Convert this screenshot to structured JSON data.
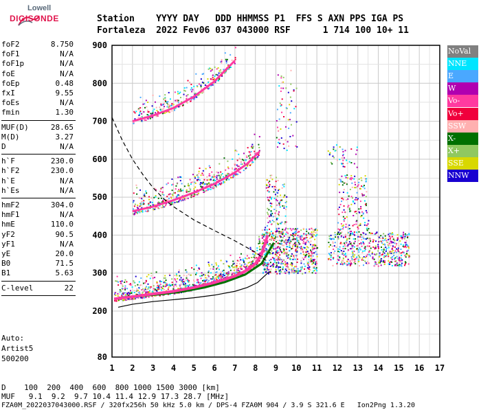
{
  "logo": {
    "top": "Lowell",
    "main": "DIGISONDE"
  },
  "header": {
    "line1": "Station    YYYY DAY   DDD HHMMSS P1  FFS S AXN PPS IGA PS",
    "line2": "Fortaleza  2022 Fev06 037 043000 RSF      1 714 100 10+ 11"
  },
  "params": [
    {
      "label": "foF2",
      "value": "8.750"
    },
    {
      "label": "foF1",
      "value": "N/A"
    },
    {
      "label": "foF1p",
      "value": "N/A"
    },
    {
      "label": "foE",
      "value": "N/A"
    },
    {
      "label": "foEp",
      "value": "0.48"
    },
    {
      "label": "fxI",
      "value": "9.55"
    },
    {
      "label": "foEs",
      "value": "N/A"
    },
    {
      "label": "fmin",
      "value": "1.30"
    },
    {
      "label": "MUF(D)",
      "value": "28.65"
    },
    {
      "label": "M(D)",
      "value": "3.27"
    },
    {
      "label": "D",
      "value": "N/A"
    },
    {
      "label": "h`F",
      "value": "230.0"
    },
    {
      "label": "h`F2",
      "value": "230.0"
    },
    {
      "label": "h`E",
      "value": "N/A"
    },
    {
      "label": "h`Es",
      "value": "N/A"
    },
    {
      "label": "hmF2",
      "value": "304.0"
    },
    {
      "label": "hmF1",
      "value": "N/A"
    },
    {
      "label": "hmE",
      "value": "110.0"
    },
    {
      "label": "yF2",
      "value": "90.5"
    },
    {
      "label": "yF1",
      "value": "N/A"
    },
    {
      "label": "yE",
      "value": "20.0"
    },
    {
      "label": "B0",
      "value": "71.5"
    },
    {
      "label": "B1",
      "value": "5.63"
    },
    {
      "label": "C-level",
      "value": "22"
    }
  ],
  "autoscaling": [
    "Auto:",
    "Artist5",
    "500200"
  ],
  "legend": [
    {
      "label": "NoVal",
      "color": "#808080"
    },
    {
      "label": "NNE",
      "color": "#00e5ff"
    },
    {
      "label": "E",
      "color": "#4aa8ff"
    },
    {
      "label": "W",
      "color": "#b000b0"
    },
    {
      "label": "Vo-",
      "color": "#ff3aa0"
    },
    {
      "label": "Vo+",
      "color": "#f0003c"
    },
    {
      "label": "SSW",
      "color": "#ffb0b0"
    },
    {
      "label": "X-",
      "color": "#007000"
    },
    {
      "label": "X+",
      "color": "#90c860"
    },
    {
      "label": "SSE",
      "color": "#d8d800"
    },
    {
      "label": "NNW",
      "color": "#1800d0"
    }
  ],
  "bottom": {
    "d_line": "D    100  200  400  600  800 1000 1500 3000 [km]",
    "muf_line": "MUF   9.1  9.2  9.7 10.4 11.4 12.9 17.3 28.7 [MHz]",
    "footer": "FZA0M_2022037043000.RSF / 320fx256h 50 kHz 5.0 km / DPS-4 FZA0M 904 / 3.9 S 321.6 E   Ion2Png 1.3.20"
  },
  "chart_data": {
    "type": "scatter",
    "x_ticks": [
      "1",
      "2",
      "3",
      "4",
      "5",
      "6",
      "7",
      "8",
      "9",
      "10",
      "11",
      "12",
      "13",
      "14",
      "15",
      "16",
      "17"
    ],
    "y_ticks": [
      "80",
      "200",
      "300",
      "400",
      "500",
      "600",
      "700",
      "800",
      "900"
    ],
    "xlim": [
      1,
      17
    ],
    "ylim": [
      80,
      900
    ],
    "grid": true,
    "legend_position": "right",
    "traces": [
      {
        "mode": "O-trace F2 virtual height",
        "color": "#ff3aa0",
        "x": [
          1.1,
          2.0,
          3.0,
          4.0,
          5.0,
          6.0,
          7.0,
          7.5,
          8.0,
          8.3,
          8.6
        ],
        "y": [
          232,
          238,
          245,
          252,
          262,
          275,
          292,
          305,
          325,
          350,
          400
        ]
      },
      {
        "mode": "X-trace F2 virtual height",
        "color": "#007000",
        "x": [
          1.5,
          2.5,
          3.5,
          4.5,
          5.5,
          6.5,
          7.5,
          8.3,
          8.9
        ],
        "y": [
          236,
          240,
          245,
          252,
          262,
          276,
          296,
          325,
          380
        ]
      },
      {
        "mode": "second hop",
        "color": "#ff3aa0",
        "x": [
          2.0,
          3.0,
          4.0,
          5.0,
          6.0,
          7.0,
          7.6,
          8.2
        ],
        "y": [
          463,
          475,
          492,
          512,
          535,
          565,
          588,
          620
        ]
      },
      {
        "mode": "third hop",
        "color": "#ff3aa0",
        "x": [
          2.0,
          3.0,
          4.0,
          5.0,
          6.0,
          7.0
        ],
        "y": [
          700,
          715,
          735,
          765,
          805,
          860
        ]
      },
      {
        "mode": "true height profile",
        "color": "#000000",
        "x": [
          1.3,
          2.0,
          3.0,
          4.0,
          5.0,
          6.0,
          7.0,
          7.6,
          8.1,
          8.4,
          8.6,
          8.75
        ],
        "y": [
          210,
          218,
          225,
          230,
          235,
          242,
          252,
          262,
          275,
          290,
          300,
          304
        ]
      },
      {
        "mode": "MUF curve (dashed)",
        "color": "#000000",
        "x": [
          1.0,
          1.5,
          2.0,
          2.5,
          3.0,
          3.5,
          4.0,
          5.0,
          6.0,
          7.0,
          8.0,
          8.6
        ],
        "y": [
          710,
          650,
          600,
          560,
          525,
          497,
          475,
          440,
          412,
          385,
          355,
          330
        ]
      }
    ]
  }
}
